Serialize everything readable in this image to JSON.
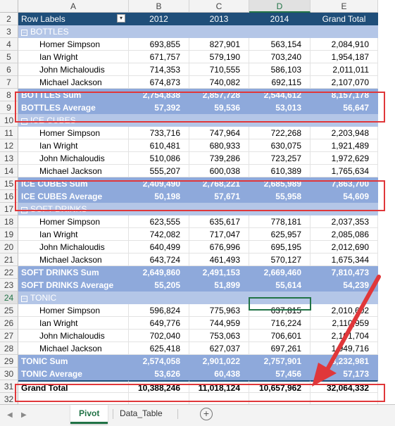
{
  "columns": [
    "A",
    "B",
    "C",
    "D",
    "E"
  ],
  "header_row": {
    "row": "2",
    "label": "Row Labels",
    "years": [
      "2012",
      "2013",
      "2014"
    ],
    "total": "Grand Total"
  },
  "rows": [
    {
      "n": "3",
      "type": "grp",
      "label": "BOTTLES"
    },
    {
      "n": "4",
      "type": "item",
      "label": "Homer Simpson",
      "v": [
        "693,855",
        "827,901",
        "563,154",
        "2,084,910"
      ]
    },
    {
      "n": "5",
      "type": "item",
      "label": "Ian Wright",
      "v": [
        "671,757",
        "579,190",
        "703,240",
        "1,954,187"
      ]
    },
    {
      "n": "6",
      "type": "item",
      "label": "John Michaloudis",
      "v": [
        "714,353",
        "710,555",
        "586,103",
        "2,011,011"
      ]
    },
    {
      "n": "7",
      "type": "item",
      "label": "Michael Jackson",
      "v": [
        "674,873",
        "740,082",
        "692,115",
        "2,107,070"
      ]
    },
    {
      "n": "8",
      "type": "sum",
      "label": "BOTTLES Sum",
      "v": [
        "2,754,838",
        "2,857,728",
        "2,544,612",
        "8,157,178"
      ]
    },
    {
      "n": "9",
      "type": "avg",
      "label": "BOTTLES Average",
      "v": [
        "57,392",
        "59,536",
        "53,013",
        "56,647"
      ]
    },
    {
      "n": "10",
      "type": "grp",
      "label": "ICE CUBES"
    },
    {
      "n": "11",
      "type": "item",
      "label": "Homer Simpson",
      "v": [
        "733,716",
        "747,964",
        "722,268",
        "2,203,948"
      ]
    },
    {
      "n": "12",
      "type": "item",
      "label": "Ian Wright",
      "v": [
        "610,481",
        "680,933",
        "630,075",
        "1,921,489"
      ]
    },
    {
      "n": "13",
      "type": "item",
      "label": "John Michaloudis",
      "v": [
        "510,086",
        "739,286",
        "723,257",
        "1,972,629"
      ]
    },
    {
      "n": "14",
      "type": "item",
      "label": "Michael Jackson",
      "v": [
        "555,207",
        "600,038",
        "610,389",
        "1,765,634"
      ]
    },
    {
      "n": "15",
      "type": "sum",
      "label": "ICE CUBES Sum",
      "v": [
        "2,409,490",
        "2,768,221",
        "2,685,989",
        "7,863,700"
      ]
    },
    {
      "n": "16",
      "type": "avg",
      "label": "ICE CUBES Average",
      "v": [
        "50,198",
        "57,671",
        "55,958",
        "54,609"
      ]
    },
    {
      "n": "17",
      "type": "grp",
      "label": "SOFT DRINKS"
    },
    {
      "n": "18",
      "type": "item",
      "label": "Homer Simpson",
      "v": [
        "623,555",
        "635,617",
        "778,181",
        "2,037,353"
      ]
    },
    {
      "n": "19",
      "type": "item",
      "label": "Ian Wright",
      "v": [
        "742,082",
        "717,047",
        "625,957",
        "2,085,086"
      ]
    },
    {
      "n": "20",
      "type": "item",
      "label": "John Michaloudis",
      "v": [
        "640,499",
        "676,996",
        "695,195",
        "2,012,690"
      ]
    },
    {
      "n": "21",
      "type": "item",
      "label": "Michael Jackson",
      "v": [
        "643,724",
        "461,493",
        "570,127",
        "1,675,344"
      ]
    },
    {
      "n": "22",
      "type": "sum",
      "label": "SOFT DRINKS Sum",
      "v": [
        "2,649,860",
        "2,491,153",
        "2,669,460",
        "7,810,473"
      ]
    },
    {
      "n": "23",
      "type": "avg",
      "label": "SOFT DRINKS Average",
      "v": [
        "55,205",
        "51,899",
        "55,614",
        "54,239"
      ]
    },
    {
      "n": "24",
      "type": "grp",
      "label": "TONIC"
    },
    {
      "n": "25",
      "type": "item",
      "label": "Homer Simpson",
      "v": [
        "596,824",
        "775,963",
        "637,815",
        "2,010,602"
      ]
    },
    {
      "n": "26",
      "type": "item",
      "label": "Ian Wright",
      "v": [
        "649,776",
        "744,959",
        "716,224",
        "2,110,959"
      ]
    },
    {
      "n": "27",
      "type": "item",
      "label": "John Michaloudis",
      "v": [
        "702,040",
        "753,063",
        "706,601",
        "2,161,704"
      ]
    },
    {
      "n": "28",
      "type": "item",
      "label": "Michael Jackson",
      "v": [
        "625,418",
        "627,037",
        "697,261",
        "1,949,716"
      ]
    },
    {
      "n": "29",
      "type": "sum",
      "label": "TONIC Sum",
      "v": [
        "2,574,058",
        "2,901,022",
        "2,757,901",
        "8,232,981"
      ]
    },
    {
      "n": "30",
      "type": "avg",
      "label": "TONIC Average",
      "v": [
        "53,626",
        "60,438",
        "57,456",
        "57,173"
      ]
    },
    {
      "n": "31",
      "type": "gt",
      "label": "Grand Total",
      "v": [
        "10,388,246",
        "11,018,124",
        "10,657,962",
        "32,064,332"
      ]
    },
    {
      "n": "32",
      "type": "empty",
      "label": ""
    }
  ],
  "row1": "1",
  "tabs": {
    "active": "Pivot",
    "other": "Data_Table",
    "add": "+"
  },
  "colors": {
    "header": "#1f4e79",
    "subtotal": "#8ea9db",
    "highlight": "#e0373a",
    "excel_green": "#217346"
  }
}
